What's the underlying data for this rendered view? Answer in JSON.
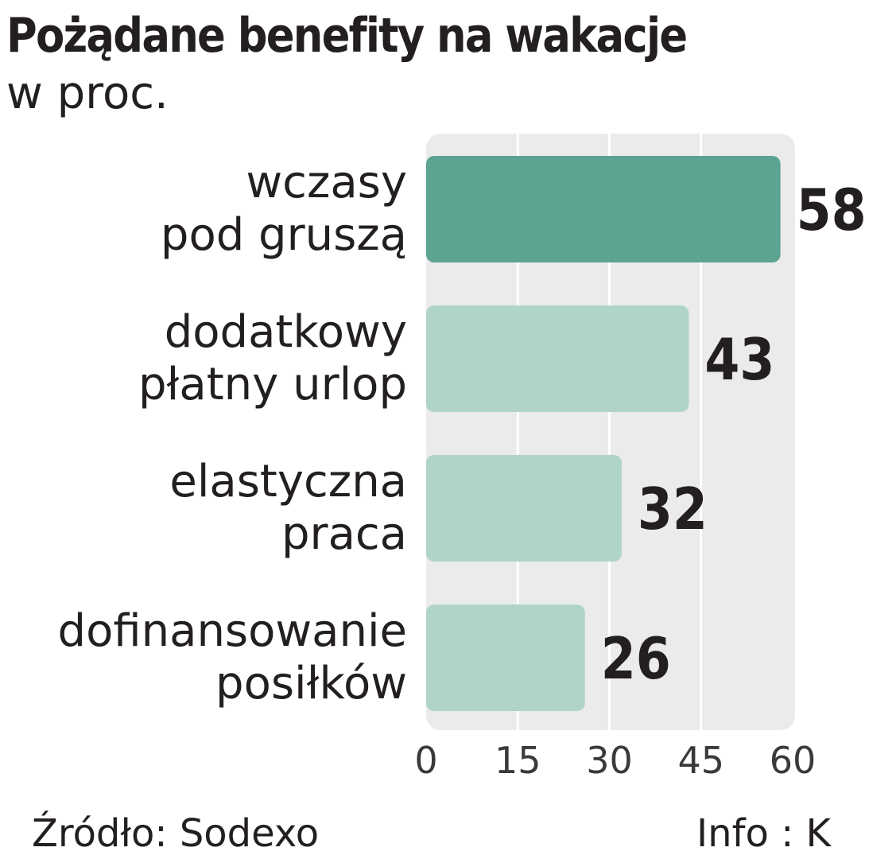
{
  "chart_data": {
    "type": "bar",
    "orientation": "horizontal",
    "title": "Pożądane benefity na wakacje",
    "subtitle": "w proc.",
    "categories": [
      [
        "wczasy",
        "pod gruszą"
      ],
      [
        "dodatkowy",
        "płatny urlop"
      ],
      [
        "elastyczna",
        "praca"
      ],
      [
        "dofinansowanie",
        "posiłków"
      ]
    ],
    "values": [
      58,
      43,
      32,
      26
    ],
    "value_labels": [
      "58",
      "43",
      "32",
      "26"
    ],
    "xlim": [
      0,
      60
    ],
    "xticks": [
      0,
      15,
      30,
      45,
      60
    ],
    "xtick_labels": [
      "0",
      "15",
      "30",
      "45",
      "60"
    ],
    "grid": true,
    "xlabel": "",
    "ylabel": ""
  },
  "source": "Źródło: Sodexo",
  "credit": "Info : K",
  "colors": {
    "highlight_bar": "#5ca391",
    "bar": "#b0d4c8",
    "plot_background": "#ebebeb",
    "gridline": "#ffffff",
    "text": "#231f20",
    "tick_text": "#3a3a3a"
  }
}
